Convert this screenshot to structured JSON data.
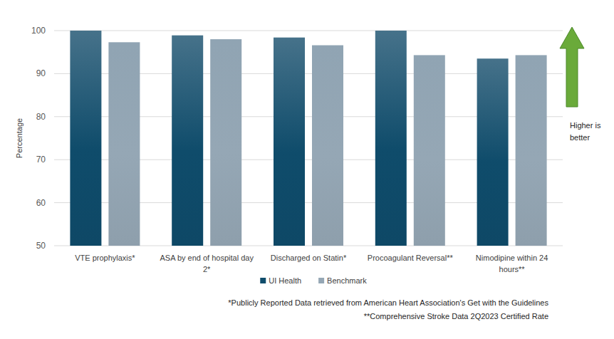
{
  "chart_data": {
    "type": "bar",
    "y_label": "Percentage",
    "categories": [
      "VTE prophylaxis*",
      "ASA by end of hospital day 2*",
      "Discharged on Statin*",
      "Procoagulant Reversal**",
      "Nimodipine within 24 hours**"
    ],
    "series": [
      {
        "name": "UI Health",
        "color": "#0f4c6b",
        "values": [
          100,
          98.9,
          98.4,
          100,
          93.5
        ]
      },
      {
        "name": "Benchmark",
        "color": "#95a7b5",
        "values": [
          97.3,
          98,
          96.6,
          94.3,
          94.3
        ]
      }
    ],
    "ylim": [
      50,
      100
    ],
    "yticks": [
      50,
      60,
      70,
      80,
      90,
      100
    ],
    "grid": true,
    "legend": "bottom",
    "annotations": [
      "Higher is better"
    ],
    "footnotes": [
      "*Publicly Reported Data retrieved from American Heart Association's Get with the Guidelines",
      "**Comprehensive Stroke Data 2Q2023 Certified Rate"
    ]
  }
}
